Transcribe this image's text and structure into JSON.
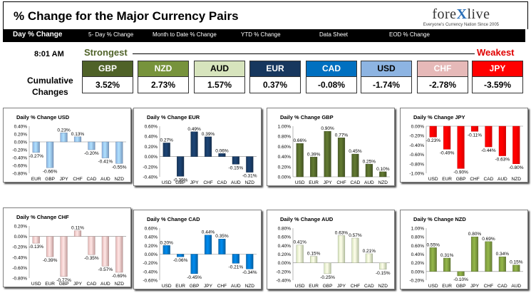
{
  "header": {
    "title": "% Change for the Major Currency Pairs",
    "logo_brand": "forexlive",
    "logo_tagline": "Everyone's Currency Nation Since 2005"
  },
  "nav": {
    "tabs": [
      {
        "label": "Day % Change",
        "active": true
      },
      {
        "label": "5- Day % Change",
        "active": false
      },
      {
        "label": "Month to Date % Change",
        "active": false
      },
      {
        "label": "YTD % Change",
        "active": false
      },
      {
        "label": "Data Sheet",
        "active": false
      },
      {
        "label": "EOD % Change",
        "active": false
      }
    ]
  },
  "summary": {
    "time": "8:01 AM",
    "strongest_label": "Strongest",
    "weakest_label": "Weakest",
    "cumulative_label_1": "Cumulative",
    "cumulative_label_2": "Changes",
    "pairs": [
      {
        "code": "GBP",
        "value": "3.52%",
        "color": "#4f6228",
        "text_color": "#ffffff"
      },
      {
        "code": "NZD",
        "value": "2.73%",
        "color": "#77933c",
        "text_color": "#ffffff"
      },
      {
        "code": "AUD",
        "value": "1.57%",
        "color": "#d7e4bd",
        "text_color": "#000000"
      },
      {
        "code": "EUR",
        "value": "0.37%",
        "color": "#17375e",
        "text_color": "#ffffff"
      },
      {
        "code": "CAD",
        "value": "-0.08%",
        "color": "#0070c0",
        "text_color": "#ffffff"
      },
      {
        "code": "USD",
        "value": "-1.74%",
        "color": "#8db4e2",
        "text_color": "#000000"
      },
      {
        "code": "CHF",
        "value": "-2.78%",
        "color": "#e6b9b8",
        "text_color": "#ffffff"
      },
      {
        "code": "JPY",
        "value": "-3.59%",
        "color": "#ff0000",
        "text_color": "#ffffff"
      }
    ]
  },
  "chart_data": [
    {
      "type": "bar",
      "title": "Daily % Change USD",
      "categories": [
        "EUR",
        "GBP",
        "JPY",
        "CHF",
        "CAD",
        "AUD",
        "NZD"
      ],
      "values": [
        -0.27,
        -0.66,
        0.23,
        0.13,
        -0.2,
        -0.41,
        -0.55
      ],
      "labels": [
        "-0.27%",
        "-0.66%",
        "0.23%",
        "0.13%",
        "-0.20%",
        "-0.41%",
        "-0.55%"
      ],
      "ylim": [
        -0.8,
        0.4
      ],
      "yticks": [
        "0.40%",
        "0.20%",
        "0.00%",
        "-0.20%",
        "-0.40%",
        "-0.60%",
        "-0.80%"
      ],
      "color": "#8db4e2"
    },
    {
      "type": "bar",
      "title": "Daily % Change EUR",
      "categories": [
        "USD",
        "GBP",
        "JPY",
        "CHF",
        "CAD",
        "AUD",
        "NZD"
      ],
      "values": [
        0.27,
        -0.39,
        0.49,
        0.39,
        0.06,
        -0.15,
        -0.31
      ],
      "labels": [
        "0.27%",
        "-0.39%",
        "0.49%",
        "0.39%",
        "0.06%",
        "-0.15%",
        "-0.31%"
      ],
      "ylim": [
        -0.4,
        0.6
      ],
      "yticks": [
        "0.60%",
        "0.40%",
        "0.20%",
        "0.00%",
        "-0.20%",
        "-0.40%"
      ],
      "color": "#17375e"
    },
    {
      "type": "bar",
      "title": "Daily % Change GBP",
      "categories": [
        "USD",
        "EUR",
        "JPY",
        "CHF",
        "CAD",
        "AUD",
        "NZD"
      ],
      "values": [
        0.66,
        0.39,
        0.9,
        0.77,
        0.45,
        0.25,
        0.1
      ],
      "labels": [
        "0.66%",
        "0.39%",
        "0.90%",
        "0.77%",
        "0.45%",
        "0.25%",
        "0.10%"
      ],
      "ylim": [
        0,
        1.0
      ],
      "yticks": [
        "1.00%",
        "0.80%",
        "0.60%",
        "0.40%",
        "0.20%",
        "0.00%"
      ],
      "color": "#4f6228"
    },
    {
      "type": "bar",
      "title": "Daily % Change JPY",
      "categories": [
        "USD",
        "EUR",
        "GBP",
        "CHF",
        "CAD",
        "AUD",
        "NZD"
      ],
      "values": [
        -0.23,
        -0.49,
        -0.9,
        -0.11,
        -0.44,
        -0.63,
        -0.8
      ],
      "labels": [
        "-0.23%",
        "-0.49%",
        "-0.90%",
        "-0.11%",
        "-0.44%",
        "-0.63%",
        "-0.80%"
      ],
      "ylim": [
        -1.0,
        0
      ],
      "yticks": [
        "0.00%",
        "-0.20%",
        "-0.40%",
        "-0.60%",
        "-0.80%",
        "-1.00%"
      ],
      "color": "#ff0000"
    },
    {
      "type": "bar",
      "title": "Daily % Change CHF",
      "categories": [
        "USD",
        "EUR",
        "GBP",
        "JPY",
        "CAD",
        "AUD",
        "NZD"
      ],
      "values": [
        -0.13,
        -0.39,
        -0.77,
        0.11,
        -0.35,
        -0.57,
        -0.69
      ],
      "labels": [
        "-0.13%",
        "-0.39%",
        "-0.77%",
        "0.11%",
        "-0.35%",
        "-0.57%",
        "-0.69%"
      ],
      "ylim": [
        -0.8,
        0.2
      ],
      "yticks": [
        "0.20%",
        "0.00%",
        "-0.20%",
        "-0.40%",
        "-0.60%",
        "-0.80%"
      ],
      "color": "#e6b9b8"
    },
    {
      "type": "bar",
      "title": "Daily % Change CAD",
      "categories": [
        "USD",
        "EUR",
        "GBP",
        "JPY",
        "CHF",
        "AUD",
        "NZD"
      ],
      "values": [
        0.2,
        -0.06,
        -0.45,
        0.44,
        0.35,
        -0.21,
        -0.34
      ],
      "labels": [
        "0.20%",
        "-0.06%",
        "-0.45%",
        "0.44%",
        "0.35%",
        "-0.21%",
        "-0.34%"
      ],
      "ylim": [
        -0.6,
        0.6
      ],
      "yticks": [
        "0.60%",
        "0.40%",
        "0.20%",
        "0.00%",
        "-0.20%",
        "-0.40%",
        "-0.60%"
      ],
      "color": "#0070c0"
    },
    {
      "type": "bar",
      "title": "Daily % Change AUD",
      "categories": [
        "USD",
        "EUR",
        "GBP",
        "JPY",
        "CHF",
        "CAD",
        "NZD"
      ],
      "values": [
        0.41,
        0.15,
        -0.25,
        0.63,
        0.57,
        0.21,
        -0.15
      ],
      "labels": [
        "0.41%",
        "0.15%",
        "-0.25%",
        "0.63%",
        "0.57%",
        "0.21%",
        "-0.15%"
      ],
      "ylim": [
        -0.4,
        0.8
      ],
      "yticks": [
        "0.80%",
        "0.60%",
        "0.40%",
        "0.20%",
        "0.00%",
        "-0.20%",
        "-0.40%"
      ],
      "color": "#d7e4bd"
    },
    {
      "type": "bar",
      "title": "Daily % Change NZD",
      "categories": [
        "USD",
        "EUR",
        "GBP",
        "JPY",
        "CHF",
        "CAD",
        "AUD"
      ],
      "values": [
        0.55,
        0.31,
        -0.1,
        0.8,
        0.69,
        0.34,
        0.15
      ],
      "labels": [
        "0.55%",
        "0.31%",
        "-0.10%",
        "0.80%",
        "0.69%",
        "0.34%",
        "0.15%"
      ],
      "ylim": [
        -0.2,
        1.0
      ],
      "yticks": [
        "1.00%",
        "0.80%",
        "0.60%",
        "0.40%",
        "0.20%",
        "0.00%",
        "-0.20%"
      ],
      "color": "#77933c"
    }
  ]
}
